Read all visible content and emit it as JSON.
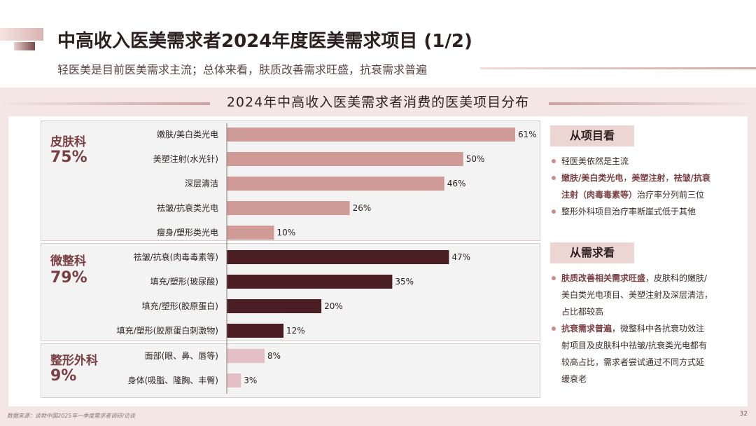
{
  "header": {
    "title": "中高收入医美需求者2024年度医美需求项目 (1/2)",
    "subtitle": "轻医美是目前医美需求主流；总体来看，肤质改善需求旺盛，抗衰需求普遍"
  },
  "chart_data": {
    "type": "bar",
    "orientation": "horizontal",
    "title": "2024年中高收入医美需求者消费的医美项目分布",
    "groups": [
      {
        "name": "皮肤科",
        "total": "75%",
        "color": "#d09b96",
        "items": [
          {
            "label": "嫩肤/美白类光电",
            "value": 61
          },
          {
            "label": "美塑注射(水光针)",
            "value": 50
          },
          {
            "label": "深层清洁",
            "value": 46
          },
          {
            "label": "祛皱/抗衰类光电",
            "value": 26
          },
          {
            "label": "瘦身/塑形类光电",
            "value": 10
          }
        ]
      },
      {
        "name": "微整科",
        "total": "79%",
        "color": "#4a1e22",
        "items": [
          {
            "label": "祛皱/抗衰(肉毒毒素等)",
            "value": 47
          },
          {
            "label": "填充/塑形(玻尿酸)",
            "value": 35
          },
          {
            "label": "填充/塑形(胶原蛋白)",
            "value": 20
          },
          {
            "label": "填充/塑形(胶原蛋白刺激物)",
            "value": 12
          }
        ]
      },
      {
        "name": "整形外科",
        "total": "9%",
        "color": "#e4bfc6",
        "items": [
          {
            "label": "面部(眼、鼻、唇等)",
            "value": 8
          },
          {
            "label": "身体(吸脂、隆胸、丰臀)",
            "value": 3
          }
        ]
      }
    ],
    "value_suffix": "%",
    "xlim": [
      0,
      61
    ]
  },
  "sidebar": {
    "project_view": {
      "heading": "从项目看",
      "bullets": [
        [
          {
            "t": "轻医美依然是主流",
            "hl": false
          }
        ],
        [
          {
            "t": "嫩肤/美白类光电",
            "hl": true
          },
          {
            "t": "，",
            "hl": false
          },
          {
            "t": "美塑注射",
            "hl": true
          },
          {
            "t": "，",
            "hl": false
          },
          {
            "t": "祛皱/抗衰",
            "hl": true
          }
        ],
        [
          {
            "t": "注射（肉毒毒素等）",
            "hl": true
          },
          {
            "t": "治疗率分列前三位",
            "hl": false
          }
        ],
        [
          {
            "t": "整形外科项目治疗率断崖式低于其他",
            "hl": false
          }
        ]
      ]
    },
    "demand_view": {
      "heading": "从需求看",
      "bullets": [
        [
          {
            "t": "肤质改善相关需求旺盛",
            "hl": true
          },
          {
            "t": "，皮肤科的嫩肤/",
            "hl": false
          }
        ],
        [
          {
            "t": "美白类光电项目、美塑注射及深层清洁，",
            "hl": false
          }
        ],
        [
          {
            "t": "占比都较高",
            "hl": false
          }
        ],
        [
          {
            "t": "抗衰需求普遍",
            "hl": true
          },
          {
            "t": "，微整科中各抗衰功效注",
            "hl": false
          }
        ],
        [
          {
            "t": "射项目及皮肤科中祛皱/抗衰类光电都有",
            "hl": false
          }
        ],
        [
          {
            "t": "较高占比，需求者尝试通过不同方式延",
            "hl": false
          }
        ],
        [
          {
            "t": "缓衰老",
            "hl": false
          }
        ]
      ]
    }
  },
  "footer": {
    "source": "数据来源：谈勃中国2025年一季度需求者调研/访谈",
    "page": "32"
  }
}
